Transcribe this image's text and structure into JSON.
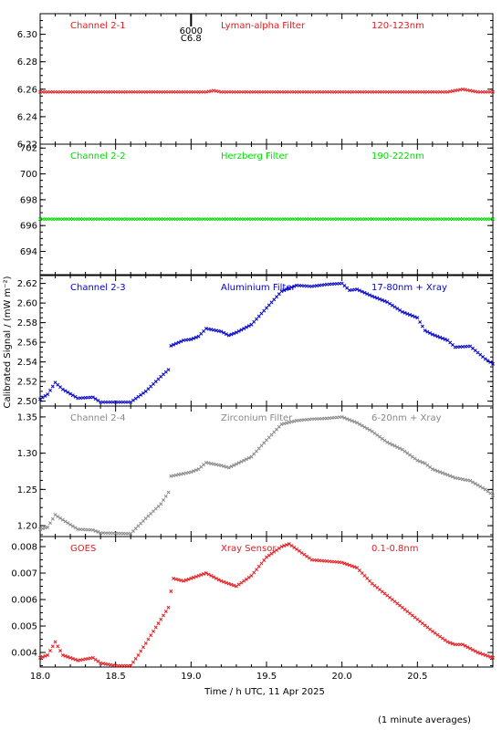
{
  "chart_data": {
    "type": "scatter",
    "xlabel": "Time / h UTC, 11 Apr 2025",
    "ylabel": "Calibrated Signal / (mW m⁻²)",
    "footnote": "(1 minute averages)",
    "xlim": [
      18.0,
      21.0
    ],
    "x_ticks": [
      "18.0",
      "18.5",
      "19.0",
      "19.5",
      "20.0",
      "20.5"
    ],
    "event_marker": {
      "x": 19.0,
      "text1": "6000",
      "text2": "C6.8"
    },
    "panels": [
      {
        "name": "Channel 2-1",
        "filter": "Lyman-alpha Filter",
        "band": "120-123nm",
        "color": "#e8191e",
        "ylim": [
          6.22,
          6.315
        ],
        "yticks": [
          "6.22",
          "6.24",
          "6.26",
          "6.28",
          "6.30"
        ],
        "tick_values": [
          6.22,
          6.24,
          6.26,
          6.28,
          6.3
        ],
        "keypoints": [
          [
            18.0,
            6.258
          ],
          [
            19.1,
            6.258
          ],
          [
            19.15,
            6.259
          ],
          [
            19.2,
            6.258
          ],
          [
            20.7,
            6.258
          ],
          [
            20.8,
            6.26
          ],
          [
            20.9,
            6.258
          ],
          [
            21.0,
            6.258
          ]
        ]
      },
      {
        "name": "Channel 2-2",
        "filter": "Herzberg Filter",
        "band": "190-222nm",
        "color": "#00dd00",
        "ylim": [
          692.2,
          702.3
        ],
        "yticks": [
          "694",
          "696",
          "698",
          "700",
          "702"
        ],
        "tick_values": [
          694,
          696,
          698,
          700,
          702
        ],
        "keypoints": [
          [
            18.0,
            696.5
          ],
          [
            21.0,
            696.5
          ]
        ]
      },
      {
        "name": "Channel 2-3",
        "filter": "Aluminium Filter",
        "band": "17-80nm + Xray",
        "color": "#0000cc",
        "ylim": [
          2.495,
          2.628
        ],
        "yticks": [
          "2.50",
          "2.52",
          "2.54",
          "2.56",
          "2.58",
          "2.60",
          "2.62"
        ],
        "tick_values": [
          2.5,
          2.52,
          2.54,
          2.56,
          2.58,
          2.6,
          2.62
        ],
        "keypoints": [
          [
            18.0,
            2.502
          ],
          [
            18.05,
            2.507
          ],
          [
            18.1,
            2.519
          ],
          [
            18.15,
            2.512
          ],
          [
            18.25,
            2.503
          ],
          [
            18.35,
            2.504
          ],
          [
            18.4,
            2.499
          ],
          [
            18.6,
            2.499
          ],
          [
            18.7,
            2.51
          ],
          [
            18.8,
            2.525
          ],
          [
            18.85,
            2.532
          ],
          [
            18.86,
            2.556
          ],
          [
            18.95,
            2.562
          ],
          [
            19.0,
            2.563
          ],
          [
            19.05,
            2.566
          ],
          [
            19.1,
            2.574
          ],
          [
            19.2,
            2.571
          ],
          [
            19.25,
            2.567
          ],
          [
            19.3,
            2.57
          ],
          [
            19.4,
            2.578
          ],
          [
            19.5,
            2.595
          ],
          [
            19.6,
            2.612
          ],
          [
            19.7,
            2.618
          ],
          [
            19.8,
            2.617
          ],
          [
            19.9,
            2.619
          ],
          [
            20.0,
            2.62
          ],
          [
            20.05,
            2.613
          ],
          [
            20.1,
            2.614
          ],
          [
            20.2,
            2.607
          ],
          [
            20.3,
            2.601
          ],
          [
            20.4,
            2.591
          ],
          [
            20.5,
            2.585
          ],
          [
            20.55,
            2.572
          ],
          [
            20.6,
            2.568
          ],
          [
            20.7,
            2.562
          ],
          [
            20.75,
            2.555
          ],
          [
            20.85,
            2.556
          ],
          [
            20.95,
            2.543
          ],
          [
            21.0,
            2.538
          ]
        ]
      },
      {
        "name": "Channel 2-4",
        "filter": "Zirconium Filter",
        "band": "6-20nm + Xray",
        "color": "#888888",
        "ylim": [
          1.185,
          1.365
        ],
        "yticks": [
          "1.20",
          "1.25",
          "1.30",
          "1.35"
        ],
        "tick_values": [
          1.2,
          1.25,
          1.3,
          1.35
        ],
        "keypoints": [
          [
            18.0,
            1.195
          ],
          [
            18.05,
            1.198
          ],
          [
            18.1,
            1.215
          ],
          [
            18.15,
            1.208
          ],
          [
            18.25,
            1.195
          ],
          [
            18.35,
            1.194
          ],
          [
            18.4,
            1.19
          ],
          [
            18.6,
            1.189
          ],
          [
            18.7,
            1.21
          ],
          [
            18.8,
            1.23
          ],
          [
            18.85,
            1.246
          ],
          [
            18.86,
            1.268
          ],
          [
            19.0,
            1.274
          ],
          [
            19.05,
            1.278
          ],
          [
            19.1,
            1.287
          ],
          [
            19.2,
            1.283
          ],
          [
            19.25,
            1.28
          ],
          [
            19.3,
            1.285
          ],
          [
            19.4,
            1.295
          ],
          [
            19.5,
            1.318
          ],
          [
            19.6,
            1.34
          ],
          [
            19.7,
            1.345
          ],
          [
            19.8,
            1.347
          ],
          [
            19.9,
            1.348
          ],
          [
            20.0,
            1.35
          ],
          [
            20.1,
            1.342
          ],
          [
            20.2,
            1.33
          ],
          [
            20.3,
            1.315
          ],
          [
            20.4,
            1.305
          ],
          [
            20.5,
            1.29
          ],
          [
            20.55,
            1.286
          ],
          [
            20.6,
            1.278
          ],
          [
            20.7,
            1.27
          ],
          [
            20.75,
            1.266
          ],
          [
            20.85,
            1.262
          ],
          [
            20.95,
            1.25
          ],
          [
            21.0,
            1.242
          ]
        ]
      },
      {
        "name": "GOES",
        "filter": "Xray Sensor",
        "band": "0.1-0.8nm",
        "color": "#e8191e",
        "ylim": [
          0.00345,
          0.00838
        ],
        "yticks": [
          "0.004",
          "0.005",
          "0.006",
          "0.007",
          "0.008"
        ],
        "tick_values": [
          0.004,
          0.005,
          0.006,
          0.007,
          0.008
        ],
        "keypoints": [
          [
            18.0,
            0.0038
          ],
          [
            18.05,
            0.0039
          ],
          [
            18.08,
            0.0042
          ],
          [
            18.1,
            0.0044
          ],
          [
            18.15,
            0.0039
          ],
          [
            18.25,
            0.0037
          ],
          [
            18.35,
            0.0038
          ],
          [
            18.4,
            0.0036
          ],
          [
            18.5,
            0.0035
          ],
          [
            18.6,
            0.0035
          ],
          [
            18.65,
            0.0039
          ],
          [
            18.75,
            0.0048
          ],
          [
            18.85,
            0.0057
          ],
          [
            18.88,
            0.0068
          ],
          [
            18.95,
            0.0067
          ],
          [
            19.0,
            0.0068
          ],
          [
            19.05,
            0.0069
          ],
          [
            19.1,
            0.007
          ],
          [
            19.2,
            0.0067
          ],
          [
            19.3,
            0.0065
          ],
          [
            19.4,
            0.0069
          ],
          [
            19.5,
            0.0076
          ],
          [
            19.6,
            0.008
          ],
          [
            19.65,
            0.0081
          ],
          [
            19.7,
            0.0079
          ],
          [
            19.8,
            0.0075
          ],
          [
            20.0,
            0.0074
          ],
          [
            20.1,
            0.0072
          ],
          [
            20.2,
            0.0066
          ],
          [
            20.4,
            0.0057
          ],
          [
            20.6,
            0.0048
          ],
          [
            20.7,
            0.0044
          ],
          [
            20.75,
            0.0043
          ],
          [
            20.8,
            0.0043
          ],
          [
            20.9,
            0.004
          ],
          [
            21.0,
            0.0038
          ]
        ]
      }
    ]
  }
}
